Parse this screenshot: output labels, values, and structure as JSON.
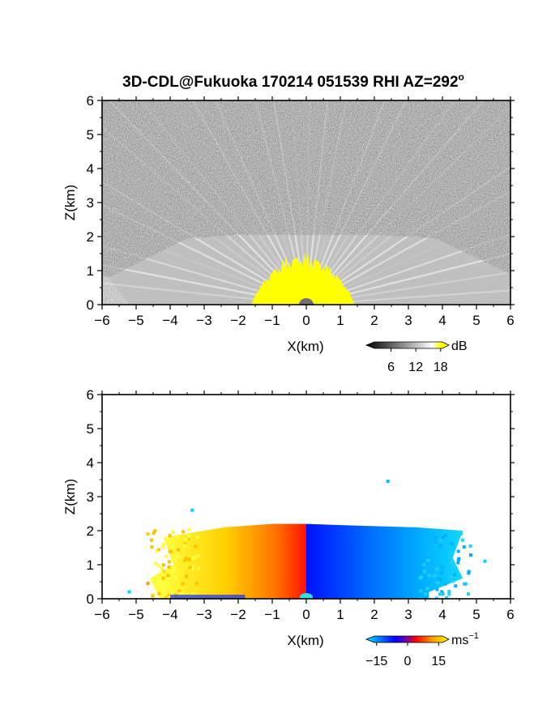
{
  "chart_data": [
    {
      "type": "heatmap",
      "panel": "reflectivity",
      "title": "3D-CDL@Fukuoka 170214 051539 RHI AZ=292",
      "title_superscript": "o",
      "xlabel": "X(km)",
      "ylabel": "Z(km)",
      "xlim": [
        -6,
        6
      ],
      "ylim": [
        0,
        6
      ],
      "xticks": [
        -6,
        -5,
        -4,
        -3,
        -2,
        -1,
        0,
        1,
        2,
        3,
        4,
        5,
        6
      ],
      "yticks": [
        0,
        1,
        2,
        3,
        4,
        5,
        6
      ],
      "grid": false,
      "colorbar": {
        "unit": "dB",
        "ticks": [
          6,
          12,
          18
        ],
        "range": [
          0,
          20
        ],
        "colors": [
          "#000000",
          "#ffffff",
          "#ffff00"
        ]
      },
      "regions": [
        {
          "name": "noise background",
          "z_range": [
            0,
            6
          ]
        },
        {
          "name": "echo layer top",
          "z": 2.05,
          "x_range": [
            -5.2,
            5.2
          ]
        },
        {
          "name": "strong echo (yellow)",
          "x_range": [
            -1.6,
            1.4
          ],
          "z_max": 1.3
        }
      ]
    },
    {
      "type": "heatmap",
      "panel": "doppler velocity",
      "xlabel": "X(km)",
      "ylabel": "Z(km)",
      "xlim": [
        -6,
        6
      ],
      "ylim": [
        0,
        6
      ],
      "xticks": [
        -6,
        -5,
        -4,
        -3,
        -2,
        -1,
        0,
        1,
        2,
        3,
        4,
        5,
        6
      ],
      "yticks": [
        0,
        1,
        2,
        3,
        4,
        5,
        6
      ],
      "grid": false,
      "colorbar": {
        "unit": "ms",
        "unit_superscript": "−1",
        "ticks": [
          "−15",
          "0",
          "15"
        ],
        "tick_values": [
          -15,
          0,
          15
        ],
        "range": [
          -20,
          20
        ],
        "colors": [
          "#00e5ff",
          "#0000ff",
          "#ff0000",
          "#ffff00"
        ]
      },
      "regions": [
        {
          "name": "receding (positive)",
          "x_range": [
            -4.3,
            0
          ],
          "z_max": 2.2,
          "velocity_range": [
            5,
            15
          ]
        },
        {
          "name": "approaching (negative)",
          "x_range": [
            0,
            4.6
          ],
          "z_max": 2.2,
          "velocity_range": [
            -15,
            -5
          ]
        }
      ]
    }
  ]
}
